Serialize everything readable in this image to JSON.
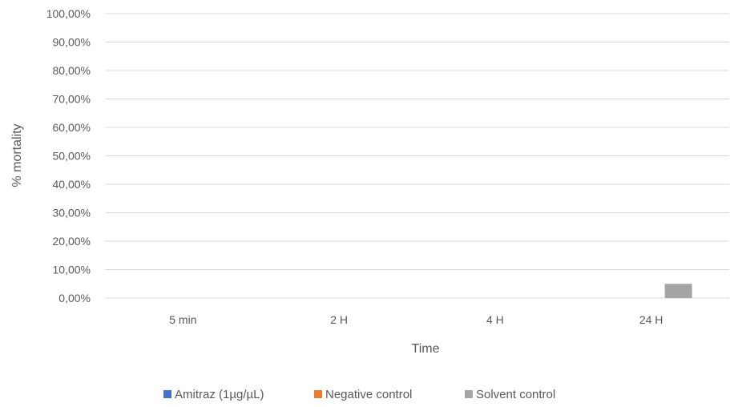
{
  "chart_data": {
    "type": "bar",
    "title": "",
    "xlabel": "Time",
    "ylabel": "% mortality",
    "categories": [
      "5 min",
      "2 H",
      "4 H",
      "24 H"
    ],
    "series": [
      {
        "name": "Amitraz (1µg/µL)",
        "color": "#4472c4",
        "values": [
          0,
          0,
          0,
          0
        ]
      },
      {
        "name": "Negative control",
        "color": "#ed7d31",
        "values": [
          0,
          0,
          0,
          0
        ]
      },
      {
        "name": "Solvent control",
        "color": "#a5a5a5",
        "values": [
          0,
          0,
          0,
          5
        ]
      }
    ],
    "ylim": [
      0,
      100
    ],
    "yticks": [
      0,
      10,
      20,
      30,
      40,
      50,
      60,
      70,
      80,
      90,
      100
    ],
    "ytick_labels": [
      "0,00%",
      "10,00%",
      "20,00%",
      "30,00%",
      "40,00%",
      "50,00%",
      "60,00%",
      "70,00%",
      "80,00%",
      "90,00%",
      "100,00%"
    ],
    "grid": true,
    "legend_position": "bottom"
  }
}
